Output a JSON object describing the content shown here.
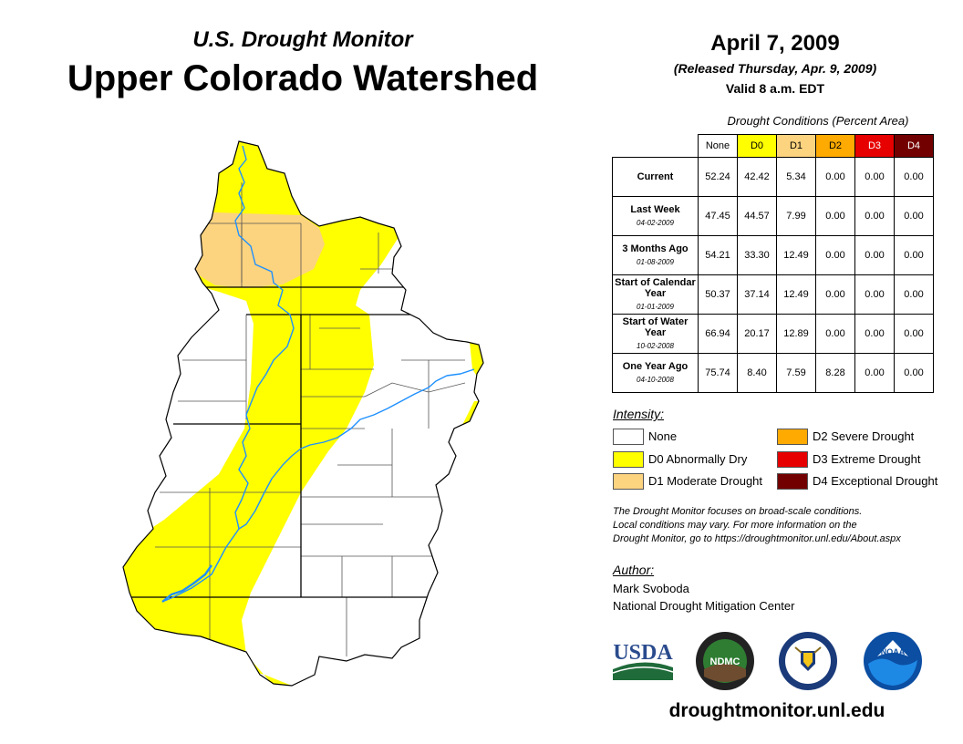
{
  "header": {
    "subtitle": "U.S. Drought Monitor",
    "title": "Upper Colorado Watershed",
    "date": "April 7, 2009",
    "released": "(Released Thursday, Apr. 9, 2009)",
    "valid": "Valid 8 a.m. EDT"
  },
  "table": {
    "caption": "Drought Conditions (Percent Area)",
    "columns": [
      "None",
      "D0",
      "D1",
      "D2",
      "D3",
      "D4"
    ],
    "column_colors": [
      "#ffffff",
      "#ffff00",
      "#fcd37f",
      "#ffaa00",
      "#e60000",
      "#730000"
    ],
    "column_text_colors": [
      "#000000",
      "#000000",
      "#000000",
      "#000000",
      "#ffffff",
      "#ffffff"
    ],
    "rows": [
      {
        "label": "Current",
        "date": "",
        "values": [
          "52.24",
          "42.42",
          "5.34",
          "0.00",
          "0.00",
          "0.00"
        ]
      },
      {
        "label": "Last Week",
        "date": "04-02-2009",
        "values": [
          "47.45",
          "44.57",
          "7.99",
          "0.00",
          "0.00",
          "0.00"
        ]
      },
      {
        "label": "3 Months Ago",
        "date": "01-08-2009",
        "values": [
          "54.21",
          "33.30",
          "12.49",
          "0.00",
          "0.00",
          "0.00"
        ]
      },
      {
        "label": "Start of Calendar Year",
        "date": "01-01-2009",
        "values": [
          "50.37",
          "37.14",
          "12.49",
          "0.00",
          "0.00",
          "0.00"
        ]
      },
      {
        "label": "Start of Water Year",
        "date": "10-02-2008",
        "values": [
          "66.94",
          "20.17",
          "12.89",
          "0.00",
          "0.00",
          "0.00"
        ]
      },
      {
        "label": "One Year Ago",
        "date": "04-10-2008",
        "values": [
          "75.74",
          "8.40",
          "7.59",
          "8.28",
          "0.00",
          "0.00"
        ]
      }
    ]
  },
  "legend": {
    "title": "Intensity:",
    "items": [
      {
        "label": "None",
        "color": "#ffffff"
      },
      {
        "label": "D0 Abnormally Dry",
        "color": "#ffff00"
      },
      {
        "label": "D1 Moderate Drought",
        "color": "#fcd37f"
      },
      {
        "label": "D2 Severe Drought",
        "color": "#ffaa00"
      },
      {
        "label": "D3 Extreme Drought",
        "color": "#e60000"
      },
      {
        "label": "D4 Exceptional Drought",
        "color": "#730000"
      }
    ]
  },
  "note": {
    "line1": "The Drought Monitor focuses on broad-scale conditions.",
    "line2": "Local conditions may vary. For more information on the",
    "line3": "Drought Monitor, go to https://droughtmonitor.unl.edu/About.aspx"
  },
  "author": {
    "title": "Author:",
    "name": "Mark Svoboda",
    "org": "National Drought Mitigation Center"
  },
  "logos": {
    "usda": "USDA",
    "ndmc": "NDMC",
    "noaa": "NOAA"
  },
  "map": {
    "colors": {
      "none": "#ffffff",
      "d0": "#ffff00",
      "d1": "#fcd37f",
      "river": "#1e90ff",
      "border": "#000000"
    }
  },
  "footer": {
    "url": "droughtmonitor.unl.edu"
  }
}
